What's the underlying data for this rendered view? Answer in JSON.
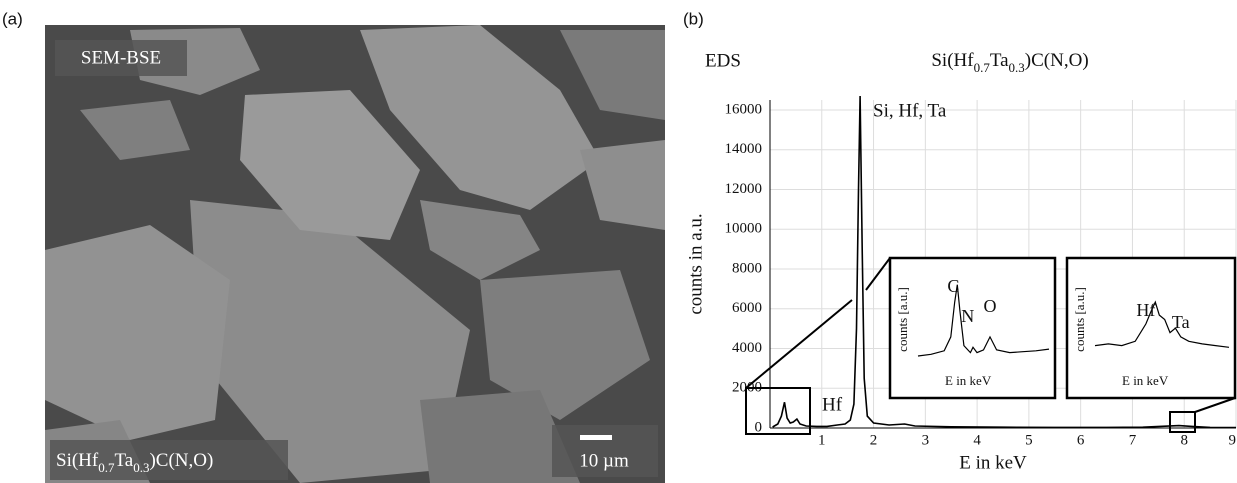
{
  "panel_labels": [
    "(a)",
    "(b)"
  ],
  "image": {
    "label": "SEM-BSE",
    "sample_parts": [
      "Si(Hf",
      "0.7",
      "Ta",
      "0.3",
      ")C(N,O)"
    ],
    "scale_bar": "10 µm"
  },
  "chart_data": {
    "type": "line",
    "corner_label": "EDS",
    "title_parts": [
      "Si(Hf",
      "0.7",
      "Ta",
      "0.3",
      ")C(N,O)"
    ],
    "xlabel": "E in keV",
    "ylabel": "counts  in a.u.",
    "x": [
      0.05,
      0.15,
      0.22,
      0.28,
      0.33,
      0.39,
      0.45,
      0.52,
      0.58,
      0.7,
      0.9,
      1.1,
      1.3,
      1.45,
      1.55,
      1.62,
      1.67,
      1.71,
      1.74,
      1.78,
      1.82,
      1.88,
      2.0,
      2.3,
      2.6,
      2.8,
      3.5,
      4.5,
      5.5,
      6.5,
      7.2,
      7.9,
      8.15,
      8.5,
      9
    ],
    "values": [
      50,
      200,
      600,
      1300,
      500,
      250,
      300,
      450,
      200,
      100,
      80,
      80,
      150,
      200,
      400,
      1200,
      5000,
      12000,
      16700,
      9000,
      2500,
      600,
      250,
      150,
      200,
      100,
      60,
      40,
      30,
      30,
      40,
      120,
      80,
      30,
      20
    ],
    "color": "#000000",
    "xlim": [
      0,
      9
    ],
    "xticks": [
      1,
      2,
      3,
      4,
      5,
      6,
      7,
      8,
      9
    ],
    "ylim": [
      0,
      16500
    ],
    "yticks": [
      0,
      2000,
      4000,
      6000,
      8000,
      10000,
      12000,
      14000,
      16000
    ],
    "grid": true,
    "annotations": [
      "Si, Hf, Ta",
      "Hf"
    ],
    "insets": [
      {
        "ylabel": "counts [a.u.]",
        "xlabel": "E in keV",
        "peaks": [
          "C",
          "N",
          "O"
        ],
        "x": [
          0,
          0.1,
          0.2,
          0.25,
          0.28,
          0.3,
          0.32,
          0.35,
          0.4,
          0.42,
          0.45,
          0.5,
          0.55,
          0.6,
          0.7,
          0.8,
          0.9,
          1
        ],
        "values": [
          8,
          10,
          14,
          30,
          70,
          90,
          60,
          20,
          12,
          18,
          12,
          15,
          30,
          15,
          12,
          13,
          14,
          16
        ]
      },
      {
        "ylabel": "counts [a.u.]",
        "xlabel": "E in keV",
        "peaks": [
          "Hf",
          "Ta"
        ],
        "x": [
          0,
          0.1,
          0.2,
          0.3,
          0.38,
          0.42,
          0.45,
          0.48,
          0.52,
          0.56,
          0.6,
          0.64,
          0.7,
          0.8,
          0.9,
          1
        ],
        "values": [
          20,
          22,
          20,
          25,
          45,
          60,
          70,
          55,
          50,
          35,
          40,
          30,
          25,
          22,
          20,
          18
        ]
      }
    ]
  }
}
